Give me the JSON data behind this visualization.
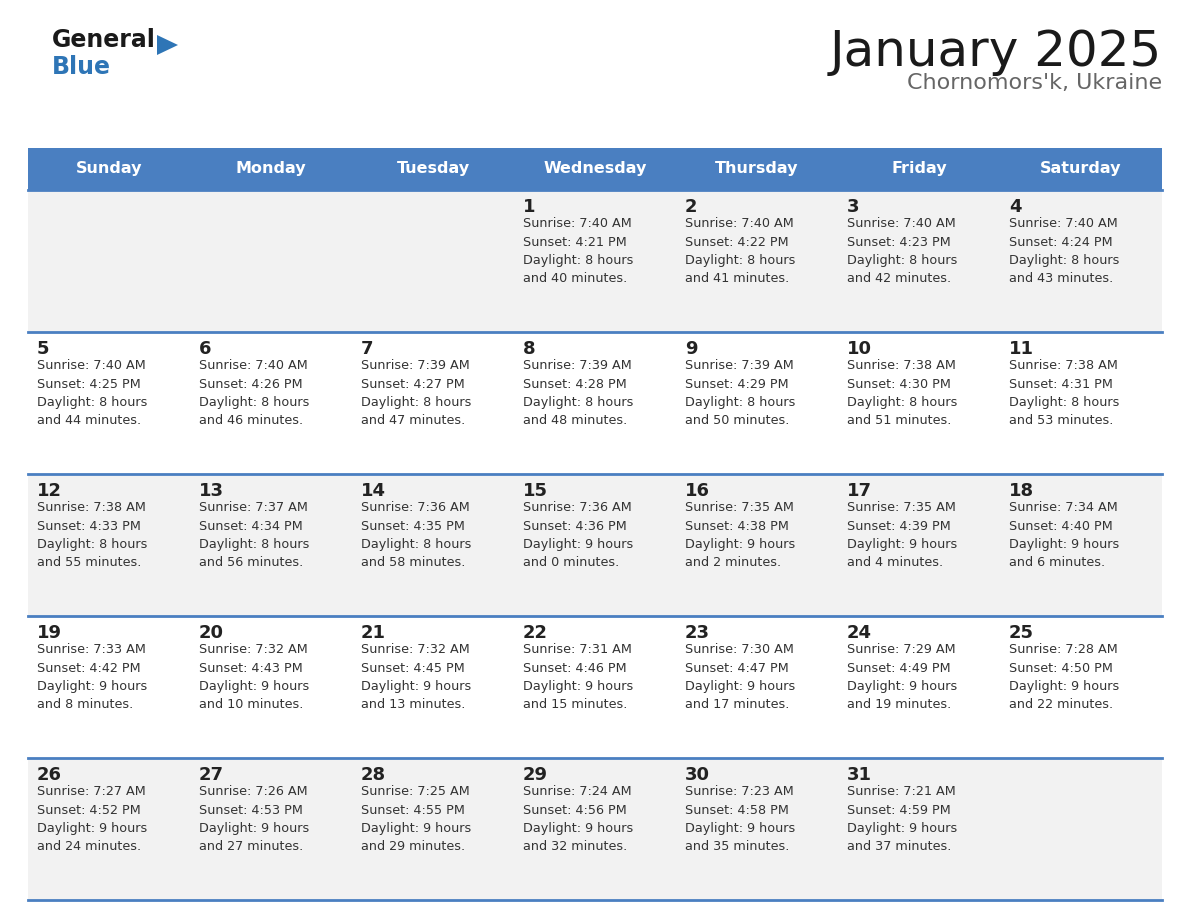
{
  "title": "January 2025",
  "subtitle": "Chornomors'k, Ukraine",
  "days_of_week": [
    "Sunday",
    "Monday",
    "Tuesday",
    "Wednesday",
    "Thursday",
    "Friday",
    "Saturday"
  ],
  "header_bg": "#4A7FC1",
  "header_text": "#FFFFFF",
  "row_bg_odd": "#F2F2F2",
  "row_bg_even": "#FFFFFF",
  "separator_color": "#4A7FC1",
  "day_num_color": "#222222",
  "cell_text_color": "#333333",
  "title_color": "#1a1a1a",
  "subtitle_color": "#666666",
  "logo_general_color": "#1a1a1a",
  "logo_blue_color": "#2E75B6",
  "calendar_data": [
    [
      "",
      "",
      "",
      "1\nSunrise: 7:40 AM\nSunset: 4:21 PM\nDaylight: 8 hours\nand 40 minutes.",
      "2\nSunrise: 7:40 AM\nSunset: 4:22 PM\nDaylight: 8 hours\nand 41 minutes.",
      "3\nSunrise: 7:40 AM\nSunset: 4:23 PM\nDaylight: 8 hours\nand 42 minutes.",
      "4\nSunrise: 7:40 AM\nSunset: 4:24 PM\nDaylight: 8 hours\nand 43 minutes."
    ],
    [
      "5\nSunrise: 7:40 AM\nSunset: 4:25 PM\nDaylight: 8 hours\nand 44 minutes.",
      "6\nSunrise: 7:40 AM\nSunset: 4:26 PM\nDaylight: 8 hours\nand 46 minutes.",
      "7\nSunrise: 7:39 AM\nSunset: 4:27 PM\nDaylight: 8 hours\nand 47 minutes.",
      "8\nSunrise: 7:39 AM\nSunset: 4:28 PM\nDaylight: 8 hours\nand 48 minutes.",
      "9\nSunrise: 7:39 AM\nSunset: 4:29 PM\nDaylight: 8 hours\nand 50 minutes.",
      "10\nSunrise: 7:38 AM\nSunset: 4:30 PM\nDaylight: 8 hours\nand 51 minutes.",
      "11\nSunrise: 7:38 AM\nSunset: 4:31 PM\nDaylight: 8 hours\nand 53 minutes."
    ],
    [
      "12\nSunrise: 7:38 AM\nSunset: 4:33 PM\nDaylight: 8 hours\nand 55 minutes.",
      "13\nSunrise: 7:37 AM\nSunset: 4:34 PM\nDaylight: 8 hours\nand 56 minutes.",
      "14\nSunrise: 7:36 AM\nSunset: 4:35 PM\nDaylight: 8 hours\nand 58 minutes.",
      "15\nSunrise: 7:36 AM\nSunset: 4:36 PM\nDaylight: 9 hours\nand 0 minutes.",
      "16\nSunrise: 7:35 AM\nSunset: 4:38 PM\nDaylight: 9 hours\nand 2 minutes.",
      "17\nSunrise: 7:35 AM\nSunset: 4:39 PM\nDaylight: 9 hours\nand 4 minutes.",
      "18\nSunrise: 7:34 AM\nSunset: 4:40 PM\nDaylight: 9 hours\nand 6 minutes."
    ],
    [
      "19\nSunrise: 7:33 AM\nSunset: 4:42 PM\nDaylight: 9 hours\nand 8 minutes.",
      "20\nSunrise: 7:32 AM\nSunset: 4:43 PM\nDaylight: 9 hours\nand 10 minutes.",
      "21\nSunrise: 7:32 AM\nSunset: 4:45 PM\nDaylight: 9 hours\nand 13 minutes.",
      "22\nSunrise: 7:31 AM\nSunset: 4:46 PM\nDaylight: 9 hours\nand 15 minutes.",
      "23\nSunrise: 7:30 AM\nSunset: 4:47 PM\nDaylight: 9 hours\nand 17 minutes.",
      "24\nSunrise: 7:29 AM\nSunset: 4:49 PM\nDaylight: 9 hours\nand 19 minutes.",
      "25\nSunrise: 7:28 AM\nSunset: 4:50 PM\nDaylight: 9 hours\nand 22 minutes."
    ],
    [
      "26\nSunrise: 7:27 AM\nSunset: 4:52 PM\nDaylight: 9 hours\nand 24 minutes.",
      "27\nSunrise: 7:26 AM\nSunset: 4:53 PM\nDaylight: 9 hours\nand 27 minutes.",
      "28\nSunrise: 7:25 AM\nSunset: 4:55 PM\nDaylight: 9 hours\nand 29 minutes.",
      "29\nSunrise: 7:24 AM\nSunset: 4:56 PM\nDaylight: 9 hours\nand 32 minutes.",
      "30\nSunrise: 7:23 AM\nSunset: 4:58 PM\nDaylight: 9 hours\nand 35 minutes.",
      "31\nSunrise: 7:21 AM\nSunset: 4:59 PM\nDaylight: 9 hours\nand 37 minutes.",
      ""
    ]
  ]
}
